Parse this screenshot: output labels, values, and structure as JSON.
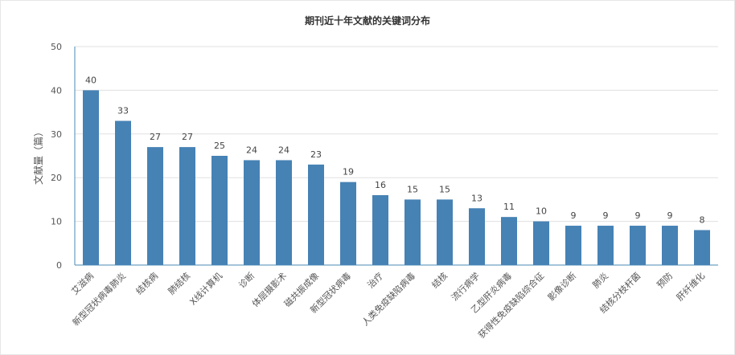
{
  "chart_data": {
    "type": "bar",
    "title": "期刊近十年文献的关键词分布",
    "ylabel": "文献量（篇）",
    "xlabel": "",
    "ylim": [
      0,
      50
    ],
    "yticks": [
      0,
      10,
      20,
      30,
      40,
      50
    ],
    "grid": true,
    "legend": "none",
    "bar_color": "#4682b4",
    "categories": [
      "艾滋病",
      "新型冠状病毒肺炎",
      "结核病",
      "肺结核",
      "X线计算机",
      "诊断",
      "体层摄影术",
      "磁共振成像",
      "新型冠状病毒",
      "治疗",
      "人类免疫缺陷病毒",
      "结核",
      "流行病学",
      "乙型肝炎病毒",
      "获得性免疫缺陷综合征",
      "影像诊断",
      "肺炎",
      "结核分枝杆菌",
      "预防",
      "肝纤维化"
    ],
    "values": [
      40,
      33,
      27,
      27,
      25,
      24,
      24,
      23,
      19,
      16,
      15,
      15,
      13,
      11,
      10,
      9,
      9,
      9,
      9,
      8
    ]
  }
}
